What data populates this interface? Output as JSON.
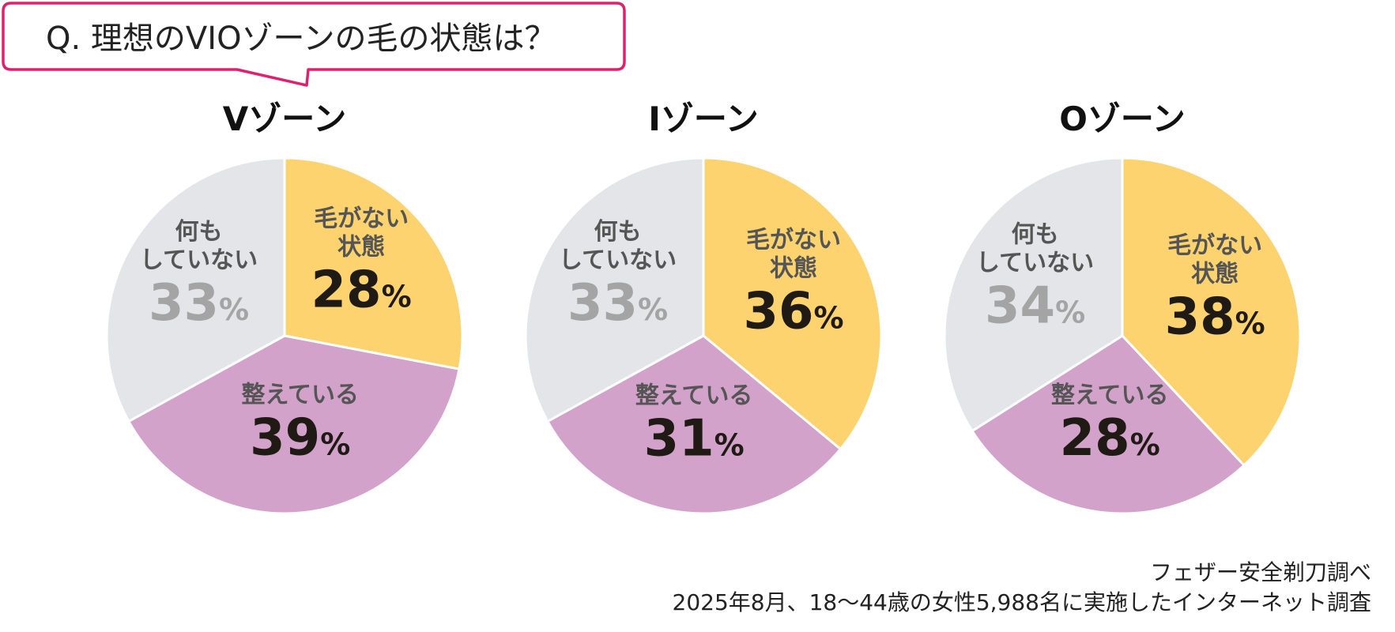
{
  "question": "Q. 理想のVIOゾーンの毛の状態は？",
  "colors": {
    "accent": "#e0206e",
    "no_hair": "#fdd36f",
    "groomed": "#d3a2cb",
    "nothing": "#e3e5e8",
    "label_dark": "#555555",
    "value_dark": "#1f1a14",
    "value_gray": "#a4a4a4"
  },
  "chart_data": [
    {
      "type": "pie",
      "title": "Vゾーン",
      "categories": [
        "毛がない状態",
        "整えている",
        "何もしていない"
      ],
      "values": [
        28,
        39,
        33
      ],
      "labels": [
        {
          "line1": "毛がない",
          "line2": "状態",
          "value": "28",
          "unit": "%"
        },
        {
          "line1": "整えている",
          "line2": "",
          "value": "39",
          "unit": "%"
        },
        {
          "line1": "何も",
          "line2": "していない",
          "value": "33",
          "unit": "%"
        }
      ]
    },
    {
      "type": "pie",
      "title": "Iゾーン",
      "categories": [
        "毛がない状態",
        "整えている",
        "何もしていない"
      ],
      "values": [
        36,
        31,
        33
      ],
      "labels": [
        {
          "line1": "毛がない",
          "line2": "状態",
          "value": "36",
          "unit": "%"
        },
        {
          "line1": "整えている",
          "line2": "",
          "value": "31",
          "unit": "%"
        },
        {
          "line1": "何も",
          "line2": "していない",
          "value": "33",
          "unit": "%"
        }
      ]
    },
    {
      "type": "pie",
      "title": "Oゾーン",
      "categories": [
        "毛がない状態",
        "整えている",
        "何もしていない"
      ],
      "values": [
        38,
        28,
        34
      ],
      "labels": [
        {
          "line1": "毛がない",
          "line2": "状態",
          "value": "38",
          "unit": "%"
        },
        {
          "line1": "整えている",
          "line2": "",
          "value": "28",
          "unit": "%"
        },
        {
          "line1": "何も",
          "line2": "していない",
          "value": "34",
          "unit": "%"
        }
      ]
    }
  ],
  "source": {
    "line1": "フェザー安全剃刀調べ",
    "line2": "2025年8月、18～44歳の女性5,988名に実施したインターネット調査"
  }
}
